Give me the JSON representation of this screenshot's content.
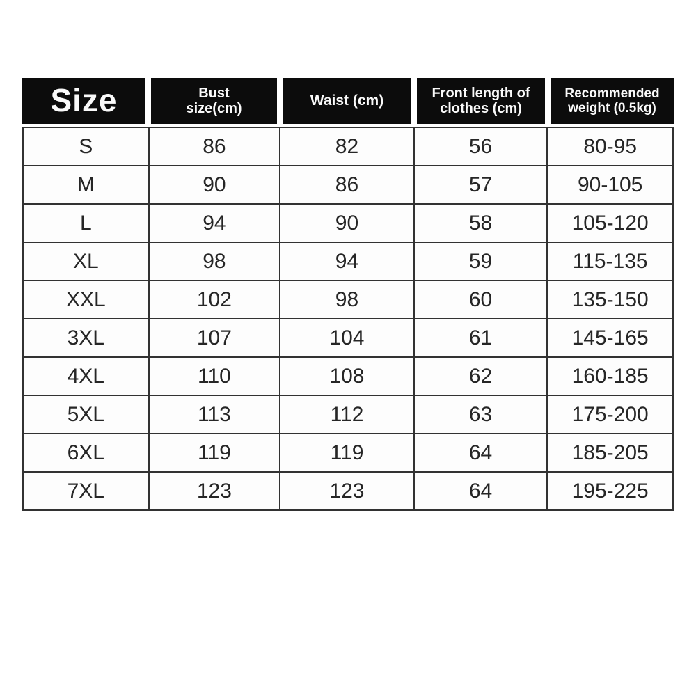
{
  "table": {
    "title": "Size",
    "header": {
      "size": "Size",
      "bust": {
        "line1": "Bust",
        "line2": "size(cm)"
      },
      "waist": "Waist (cm)",
      "front_length": {
        "line1": "Front length of",
        "line2": "clothes (cm)"
      },
      "weight": {
        "line1": "Recommended",
        "line2": "weight (0.5kg)"
      }
    },
    "columns": [
      "Size",
      "Bust size(cm)",
      "Waist (cm)",
      "Front length of clothes (cm)",
      "Recommended weight (0.5kg)"
    ],
    "rows": [
      {
        "size": "S",
        "bust": "86",
        "waist": "82",
        "front_length": "56",
        "weight": "80-95"
      },
      {
        "size": "M",
        "bust": "90",
        "waist": "86",
        "front_length": "57",
        "weight": "90-105"
      },
      {
        "size": "L",
        "bust": "94",
        "waist": "90",
        "front_length": "58",
        "weight": "105-120"
      },
      {
        "size": "XL",
        "bust": "98",
        "waist": "94",
        "front_length": "59",
        "weight": "115-135"
      },
      {
        "size": "XXL",
        "bust": "102",
        "waist": "98",
        "front_length": "60",
        "weight": "135-150"
      },
      {
        "size": "3XL",
        "bust": "107",
        "waist": "104",
        "front_length": "61",
        "weight": "145-165"
      },
      {
        "size": "4XL",
        "bust": "110",
        "waist": "108",
        "front_length": "62",
        "weight": "160-185"
      },
      {
        "size": "5XL",
        "bust": "113",
        "waist": "112",
        "front_length": "63",
        "weight": "175-200"
      },
      {
        "size": "6XL",
        "bust": "119",
        "waist": "119",
        "front_length": "64",
        "weight": "185-205"
      },
      {
        "size": "7XL",
        "bust": "123",
        "waist": "123",
        "front_length": "64",
        "weight": "195-225"
      }
    ],
    "colors": {
      "header_bg": "#0c0c0c",
      "header_text": "#fafafa",
      "body_bg": "#fdfdfd",
      "body_text": "#262626",
      "border": "#323232"
    }
  }
}
